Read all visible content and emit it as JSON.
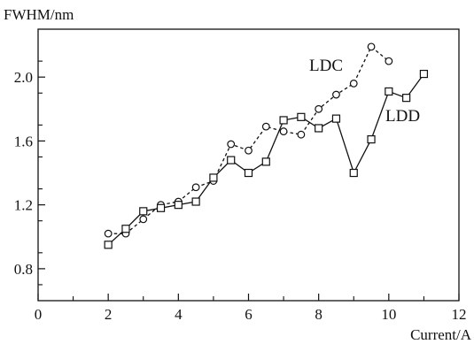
{
  "chart_data": {
    "type": "line",
    "xlabel": "Current/A",
    "ylabel": "FWHM/nm",
    "xlim": [
      0,
      12
    ],
    "ylim": [
      0.6,
      2.3
    ],
    "x_ticks": [
      0,
      2,
      4,
      6,
      8,
      10,
      12
    ],
    "x_tick_labels": [
      "0",
      "2",
      "4",
      "6",
      "8",
      "10",
      "12"
    ],
    "y_ticks": [
      0.8,
      1.2,
      1.6,
      2.0
    ],
    "y_tick_labels": [
      "0.8",
      "1.2",
      "1.6",
      "2.0"
    ],
    "grid": false,
    "series": [
      {
        "name": "LDC",
        "marker": "circle",
        "line_style": "dashed",
        "x": [
          2,
          2.5,
          3,
          3.5,
          4,
          4.5,
          5,
          5.5,
          6,
          6.5,
          7,
          7.5,
          8,
          8.5,
          9,
          9.5,
          10
        ],
        "y": [
          1.02,
          1.02,
          1.11,
          1.2,
          1.22,
          1.31,
          1.35,
          1.58,
          1.54,
          1.69,
          1.66,
          1.64,
          1.8,
          1.89,
          1.96,
          2.19,
          2.1
        ]
      },
      {
        "name": "LDD",
        "marker": "square",
        "line_style": "solid",
        "x": [
          2,
          2.5,
          3,
          3.5,
          4,
          4.5,
          5,
          5.5,
          6,
          6.5,
          7,
          7.5,
          8,
          8.5,
          9,
          9.5,
          10,
          10.5,
          11
        ],
        "y": [
          0.95,
          1.05,
          1.16,
          1.18,
          1.2,
          1.22,
          1.37,
          1.48,
          1.4,
          1.47,
          1.73,
          1.75,
          1.68,
          1.74,
          1.4,
          1.61,
          1.91,
          1.87,
          2.02
        ]
      }
    ]
  }
}
